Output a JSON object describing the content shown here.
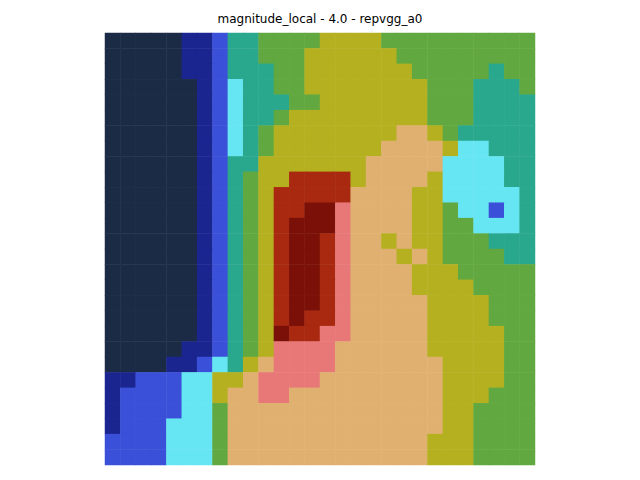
{
  "chart_data": {
    "type": "heatmap",
    "title": "magnitude_local - 4.0 - repvgg_a0",
    "tick_labels": false,
    "zlim": [
      0,
      10
    ],
    "cells": [
      [
        0,
        0,
        0,
        0,
        0,
        1,
        1,
        2,
        4,
        4,
        5,
        5,
        5,
        5,
        6,
        6,
        6,
        6,
        5,
        5,
        5,
        5,
        5,
        5,
        5,
        5,
        5,
        5
      ],
      [
        0,
        0,
        0,
        0,
        0,
        1,
        1,
        2,
        4,
        4,
        5,
        5,
        5,
        6,
        6,
        6,
        6,
        6,
        6,
        5,
        5,
        5,
        5,
        5,
        5,
        5,
        5,
        5
      ],
      [
        0,
        0,
        0,
        0,
        0,
        1,
        1,
        2,
        4,
        4,
        4,
        5,
        5,
        6,
        6,
        6,
        6,
        6,
        6,
        6,
        5,
        5,
        5,
        5,
        5,
        4,
        5,
        5
      ],
      [
        0,
        0,
        0,
        0,
        0,
        0,
        1,
        2,
        3,
        4,
        4,
        5,
        5,
        6,
        6,
        6,
        6,
        6,
        6,
        6,
        6,
        5,
        5,
        5,
        4,
        4,
        4,
        5
      ],
      [
        0,
        0,
        0,
        0,
        0,
        0,
        1,
        2,
        3,
        4,
        4,
        4,
        5,
        5,
        6,
        6,
        6,
        6,
        6,
        6,
        6,
        5,
        5,
        5,
        4,
        4,
        4,
        4
      ],
      [
        0,
        0,
        0,
        0,
        0,
        0,
        1,
        2,
        3,
        4,
        4,
        5,
        6,
        6,
        6,
        6,
        6,
        6,
        6,
        6,
        6,
        5,
        5,
        5,
        4,
        4,
        4,
        4
      ],
      [
        0,
        0,
        0,
        0,
        0,
        0,
        1,
        2,
        3,
        4,
        5,
        6,
        6,
        6,
        6,
        6,
        6,
        6,
        6,
        7,
        7,
        6,
        5,
        4,
        4,
        4,
        4,
        4
      ],
      [
        0,
        0,
        0,
        0,
        0,
        0,
        1,
        2,
        3,
        4,
        5,
        6,
        6,
        6,
        6,
        6,
        6,
        6,
        7,
        7,
        7,
        7,
        6,
        3,
        3,
        4,
        4,
        4
      ],
      [
        0,
        0,
        0,
        0,
        0,
        0,
        1,
        2,
        4,
        4,
        6,
        6,
        6,
        6,
        6,
        6,
        6,
        7,
        7,
        7,
        7,
        7,
        3,
        3,
        3,
        3,
        4,
        4
      ],
      [
        0,
        0,
        0,
        0,
        0,
        0,
        1,
        2,
        4,
        5,
        6,
        6,
        9,
        9,
        9,
        9,
        6,
        7,
        7,
        7,
        7,
        6,
        3,
        3,
        3,
        3,
        4,
        4
      ],
      [
        0,
        0,
        0,
        0,
        0,
        0,
        1,
        2,
        4,
        5,
        6,
        9,
        9,
        9,
        9,
        9,
        7,
        7,
        7,
        7,
        6,
        6,
        3,
        3,
        3,
        3,
        3,
        4
      ],
      [
        0,
        0,
        0,
        0,
        0,
        0,
        1,
        2,
        4,
        5,
        6,
        9,
        9,
        10,
        10,
        8,
        7,
        7,
        7,
        7,
        6,
        6,
        5,
        3,
        3,
        2,
        3,
        4
      ],
      [
        0,
        0,
        0,
        0,
        0,
        0,
        1,
        2,
        4,
        5,
        6,
        9,
        10,
        10,
        10,
        8,
        7,
        7,
        7,
        7,
        6,
        6,
        5,
        5,
        3,
        3,
        3,
        4
      ],
      [
        0,
        0,
        0,
        0,
        0,
        0,
        1,
        2,
        4,
        5,
        6,
        9,
        10,
        10,
        9,
        8,
        7,
        7,
        6,
        7,
        6,
        6,
        5,
        5,
        5,
        4,
        4,
        4
      ],
      [
        0,
        0,
        0,
        0,
        0,
        0,
        1,
        2,
        4,
        5,
        6,
        9,
        10,
        10,
        9,
        8,
        7,
        7,
        7,
        6,
        7,
        6,
        5,
        5,
        5,
        5,
        4,
        4
      ],
      [
        0,
        0,
        0,
        0,
        0,
        0,
        1,
        2,
        4,
        5,
        6,
        9,
        10,
        10,
        9,
        8,
        7,
        7,
        7,
        7,
        6,
        6,
        6,
        5,
        5,
        5,
        5,
        5
      ],
      [
        0,
        0,
        0,
        0,
        0,
        0,
        1,
        2,
        4,
        5,
        6,
        9,
        10,
        10,
        9,
        8,
        7,
        7,
        7,
        7,
        6,
        6,
        6,
        6,
        5,
        5,
        5,
        5
      ],
      [
        0,
        0,
        0,
        0,
        0,
        0,
        1,
        2,
        4,
        5,
        6,
        9,
        10,
        10,
        9,
        8,
        7,
        7,
        7,
        7,
        7,
        6,
        6,
        6,
        6,
        5,
        5,
        5
      ],
      [
        0,
        0,
        0,
        0,
        0,
        0,
        1,
        2,
        4,
        5,
        6,
        9,
        10,
        9,
        9,
        8,
        7,
        7,
        7,
        7,
        7,
        6,
        6,
        6,
        6,
        5,
        5,
        5
      ],
      [
        0,
        0,
        0,
        0,
        0,
        0,
        1,
        2,
        4,
        5,
        6,
        10,
        9,
        9,
        8,
        8,
        7,
        7,
        7,
        7,
        7,
        6,
        6,
        6,
        6,
        6,
        5,
        5
      ],
      [
        0,
        0,
        0,
        0,
        0,
        1,
        1,
        2,
        4,
        5,
        6,
        8,
        8,
        8,
        8,
        7,
        7,
        7,
        7,
        7,
        7,
        6,
        6,
        6,
        6,
        6,
        5,
        5
      ],
      [
        0,
        0,
        0,
        0,
        1,
        1,
        2,
        3,
        4,
        6,
        7,
        8,
        8,
        8,
        8,
        7,
        7,
        7,
        7,
        7,
        7,
        7,
        6,
        6,
        6,
        6,
        5,
        5
      ],
      [
        1,
        1,
        2,
        2,
        2,
        3,
        3,
        6,
        6,
        7,
        8,
        8,
        8,
        8,
        7,
        7,
        7,
        7,
        7,
        7,
        7,
        7,
        6,
        6,
        6,
        6,
        5,
        5
      ],
      [
        1,
        2,
        2,
        2,
        2,
        3,
        3,
        6,
        7,
        7,
        8,
        8,
        7,
        7,
        7,
        7,
        7,
        7,
        7,
        7,
        7,
        7,
        6,
        6,
        6,
        5,
        5,
        5
      ],
      [
        1,
        2,
        2,
        2,
        2,
        3,
        3,
        5,
        7,
        7,
        7,
        7,
        7,
        7,
        7,
        7,
        7,
        7,
        7,
        7,
        7,
        7,
        6,
        6,
        5,
        5,
        5,
        5
      ],
      [
        1,
        2,
        2,
        2,
        3,
        3,
        3,
        5,
        7,
        7,
        7,
        7,
        7,
        7,
        7,
        7,
        7,
        7,
        7,
        7,
        7,
        7,
        6,
        6,
        5,
        5,
        5,
        5
      ],
      [
        2,
        2,
        2,
        2,
        3,
        3,
        3,
        5,
        7,
        7,
        7,
        7,
        7,
        7,
        7,
        7,
        7,
        7,
        7,
        7,
        7,
        6,
        6,
        6,
        5,
        5,
        5,
        5
      ],
      [
        2,
        2,
        2,
        2,
        3,
        3,
        3,
        5,
        7,
        7,
        7,
        7,
        7,
        7,
        7,
        7,
        7,
        7,
        7,
        7,
        7,
        6,
        6,
        6,
        5,
        5,
        5,
        5
      ]
    ]
  }
}
